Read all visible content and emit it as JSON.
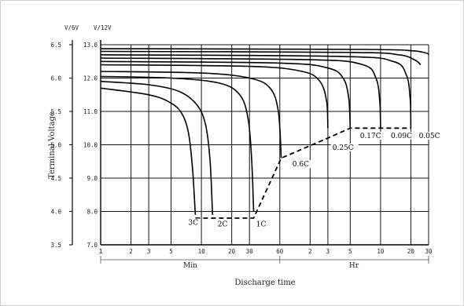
{
  "chart_data": {
    "type": "line",
    "title": "",
    "xlabel": "Discharge time",
    "ylabel": "Terminal Voltage",
    "y_unit_labels": [
      "V/6V",
      "V/12V"
    ],
    "x_segments": [
      {
        "label": "Min",
        "ticks": [
          "1",
          "2",
          "3",
          "5",
          "10",
          "20",
          "30",
          "60"
        ],
        "range_minutes": [
          1,
          60
        ]
      },
      {
        "label": "Hr",
        "ticks": [
          "2",
          "3",
          "5",
          "10",
          "20",
          "30"
        ],
        "range_hours": [
          1,
          30
        ]
      }
    ],
    "x_scale": "log",
    "x_range_minutes": [
      1,
      1800
    ],
    "y_range_12v": [
      7.0,
      13.0
    ],
    "y_ticks_12v": [
      "7.0",
      "8.0",
      "9.0",
      "10.0",
      "11.0",
      "12.0",
      "13.0"
    ],
    "y_ticks_6v": [
      "3.5",
      "4.0",
      "4.5",
      "5.0",
      "5.5",
      "6.0",
      "6.5"
    ],
    "grid": true,
    "series": [
      {
        "name": "3C",
        "x_minutes": [
          1,
          3,
          5,
          6.5,
          7.5,
          8.2,
          8.7
        ],
        "y_12v": [
          11.7,
          11.5,
          11.25,
          10.9,
          10.3,
          9.2,
          7.9
        ]
      },
      {
        "name": "2C",
        "x_minutes": [
          1,
          3,
          6,
          9,
          11,
          12.2,
          12.9
        ],
        "y_12v": [
          11.9,
          11.8,
          11.6,
          11.2,
          10.6,
          9.5,
          7.9
        ]
      },
      {
        "name": "1C",
        "x_minutes": [
          1,
          5,
          15,
          24,
          29,
          31.5,
          33
        ],
        "y_12v": [
          12.05,
          12.0,
          11.85,
          11.5,
          10.8,
          9.6,
          8.0
        ]
      },
      {
        "name": "0.6C",
        "x_minutes": [
          1,
          10,
          30,
          48,
          58,
          62
        ],
        "y_12v": [
          12.2,
          12.15,
          12.0,
          11.7,
          11.0,
          9.6
        ]
      },
      {
        "name": "0.25C",
        "x_minutes": [
          1,
          30,
          100,
          150,
          175,
          180
        ],
        "y_12v": [
          12.4,
          12.35,
          12.2,
          11.9,
          11.3,
          10.5
        ]
      },
      {
        "name": "0.17C",
        "x_minutes": [
          1,
          60,
          180,
          255,
          290,
          300
        ],
        "y_12v": [
          12.5,
          12.45,
          12.3,
          12.0,
          11.4,
          10.5
        ]
      },
      {
        "name": "0.09C",
        "x_minutes": [
          1,
          120,
          400,
          540,
          590,
          600
        ],
        "y_12v": [
          12.6,
          12.55,
          12.4,
          12.0,
          11.3,
          10.5
        ]
      },
      {
        "name": "0.05C",
        "x_minutes": [
          1,
          240,
          800,
          1080,
          1180,
          1200
        ],
        "y_12v": [
          12.7,
          12.65,
          12.5,
          12.1,
          11.4,
          10.5
        ]
      },
      {
        "name": "",
        "x_minutes": [
          1,
          300,
          900,
          1300,
          1500
        ],
        "y_12v": [
          12.8,
          12.77,
          12.7,
          12.55,
          12.4
        ]
      },
      {
        "name": "",
        "x_minutes": [
          1,
          400,
          1200,
          1700,
          1800
        ],
        "y_12v": [
          12.88,
          12.86,
          12.82,
          12.75,
          12.7
        ]
      }
    ],
    "end_voltage_line": {
      "style": "dashed",
      "x_minutes": [
        8.7,
        33,
        62,
        180,
        300,
        600,
        1200
      ],
      "y_12v": [
        7.8,
        7.8,
        9.6,
        10.2,
        10.5,
        10.5,
        10.5
      ]
    },
    "annotations": [
      {
        "text": "3C",
        "x_minutes": 7.4,
        "y_12v": 7.6
      },
      {
        "text": "2C",
        "x_minutes": 14.5,
        "y_12v": 7.55
      },
      {
        "text": "1C",
        "x_minutes": 35,
        "y_12v": 7.55
      },
      {
        "text": "0.6C",
        "x_minutes": 80,
        "y_12v": 9.35
      },
      {
        "text": "0.25C",
        "x_minutes": 200,
        "y_12v": 9.85
      },
      {
        "text": "0.17C",
        "x_minutes": 375,
        "y_12v": 10.2
      },
      {
        "text": "0.09C",
        "x_minutes": 760,
        "y_12v": 10.2
      },
      {
        "text": "0.05C",
        "x_minutes": 1440,
        "y_12v": 10.2
      }
    ]
  }
}
